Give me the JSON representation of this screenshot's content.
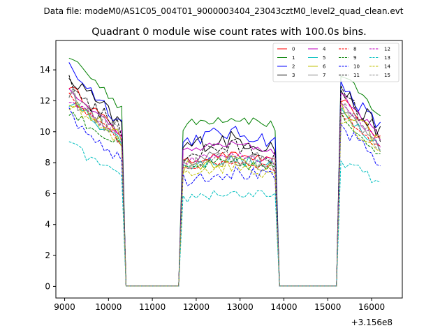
{
  "figure": {
    "suptitle": "Data file: modeM0/AS1C05_004T01_9000003404_23043cztM0_level2_quad_clean.evt"
  },
  "chart_data": {
    "type": "line",
    "title": "Quadrant 0 module wise count rates with 100.0s bins.",
    "xlabel": "",
    "ylabel": "",
    "x_offset_label": "+3.156e8",
    "xlim": [
      8800,
      16700
    ],
    "ylim": [
      -0.75,
      15.9
    ],
    "xticks": [
      9000,
      10000,
      11000,
      12000,
      13000,
      14000,
      15000,
      16000
    ],
    "xtick_labels": [
      "9000",
      "10000",
      "11000",
      "12000",
      "13000",
      "14000",
      "15000",
      "16000"
    ],
    "yticks": [
      0,
      2,
      4,
      6,
      8,
      10,
      12,
      14
    ],
    "ytick_labels": [
      "0",
      "2",
      "4",
      "6",
      "8",
      "10",
      "12",
      "14"
    ],
    "legend_position": "top-right",
    "segments": [
      {
        "start": 9100,
        "end": 10300
      },
      {
        "start": 11650,
        "end": 13850
      },
      {
        "start": 15250,
        "end": 16250
      }
    ],
    "gap_rate": 0.02,
    "series": [
      {
        "name": "0",
        "color": "#ff0000",
        "dashed": false,
        "rates": [
          13.0,
          9.8,
          8.3,
          12.3
        ]
      },
      {
        "name": "1",
        "color": "#008000",
        "dashed": false,
        "rates": [
          14.9,
          11.6,
          10.7,
          13.8
        ]
      },
      {
        "name": "2",
        "color": "#0000ff",
        "dashed": false,
        "rates": [
          14.2,
          10.6,
          9.7,
          13.2
        ]
      },
      {
        "name": "3",
        "color": "#000000",
        "dashed": false,
        "rates": [
          13.5,
          10.4,
          9.3,
          12.8
        ]
      },
      {
        "name": "4",
        "color": "#bf00bf",
        "dashed": false,
        "rates": [
          12.6,
          9.9,
          9.0,
          12.6
        ]
      },
      {
        "name": "5",
        "color": "#00bfbf",
        "dashed": false,
        "rates": [
          12.0,
          9.4,
          8.0,
          11.6
        ]
      },
      {
        "name": "6",
        "color": "#bfbf00",
        "dashed": false,
        "rates": [
          11.8,
          9.8,
          8.0,
          11.6
        ]
      },
      {
        "name": "7",
        "color": "#808080",
        "dashed": false,
        "rates": [
          12.4,
          9.6,
          8.1,
          11.7
        ]
      },
      {
        "name": "8",
        "color": "#ff0000",
        "dashed": true,
        "rates": [
          12.3,
          9.3,
          7.9,
          11.3
        ]
      },
      {
        "name": "9",
        "color": "#008000",
        "dashed": true,
        "rates": [
          11.3,
          9.0,
          7.8,
          11.1
        ]
      },
      {
        "name": "10",
        "color": "#0000ff",
        "dashed": true,
        "rates": [
          11.1,
          8.2,
          7.2,
          10.4
        ]
      },
      {
        "name": "11",
        "color": "#000000",
        "dashed": true,
        "rates": [
          13.1,
          10.0,
          8.8,
          12.6
        ]
      },
      {
        "name": "12",
        "color": "#bf00bf",
        "dashed": true,
        "rates": [
          12.1,
          9.5,
          8.3,
          11.9
        ]
      },
      {
        "name": "13",
        "color": "#00bfbf",
        "dashed": true,
        "rates": [
          9.2,
          6.9,
          5.9,
          8.3
        ]
      },
      {
        "name": "14",
        "color": "#bfbf00",
        "dashed": true,
        "rates": [
          11.9,
          9.1,
          7.6,
          11.1
        ]
      },
      {
        "name": "15",
        "color": "#808080",
        "dashed": true,
        "rates": [
          12.6,
          9.6,
          8.2,
          11.8
        ]
      }
    ]
  }
}
